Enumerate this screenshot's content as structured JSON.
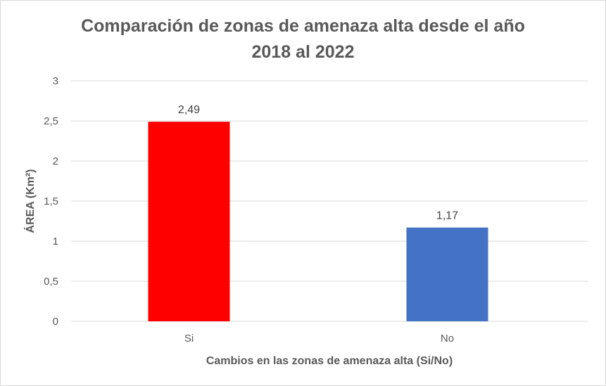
{
  "chart_data": {
    "type": "bar",
    "title_line1": "Comparación de zonas de amenaza alta desde el año",
    "title_line2": "2018 al 2022",
    "categories": [
      "Si",
      "No"
    ],
    "values": [
      2.49,
      1.17
    ],
    "data_labels": [
      "2,49",
      "1,17"
    ],
    "bar_colors": [
      "#ff0000",
      "#4472c4"
    ],
    "xlabel": "Cambios en las zonas de amenaza alta (Si/No)",
    "ylabel": "ÁREA (Km²)",
    "ylim": [
      0,
      3
    ],
    "yticks": [
      0,
      0.5,
      1,
      1.5,
      2,
      2.5,
      3
    ],
    "ytick_labels": [
      "0",
      "0,5",
      "1",
      "1,5",
      "2",
      "2,5",
      "3"
    ],
    "grid": true,
    "legend": "none"
  }
}
